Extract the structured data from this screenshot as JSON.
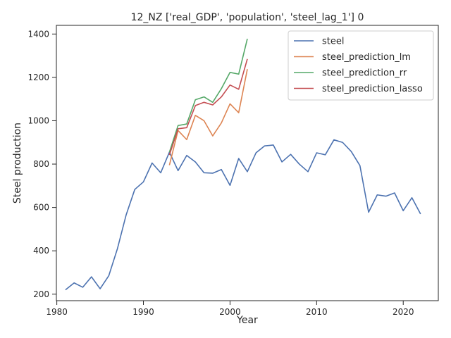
{
  "chart_data": {
    "type": "line",
    "title": "12_NZ ['real_GDP', 'population', 'steel_lag_1'] 0",
    "xlabel": "Year",
    "ylabel": "Steel production",
    "xlim": [
      1979.95,
      2024.05
    ],
    "ylim": [
      170,
      1440
    ],
    "xticks": [
      1980,
      1990,
      2000,
      2010,
      2020
    ],
    "yticks": [
      200,
      400,
      600,
      800,
      1000,
      1200,
      1400
    ],
    "grid": false,
    "legend_position": "top-right",
    "series": [
      {
        "name": "steel",
        "color": "#4c72b0",
        "x": [
          1981,
          1982,
          1983,
          1984,
          1985,
          1986,
          1987,
          1988,
          1989,
          1990,
          1991,
          1992,
          1993,
          1994,
          1995,
          1996,
          1997,
          1998,
          1999,
          2000,
          2001,
          2002,
          2003,
          2004,
          2005,
          2006,
          2007,
          2008,
          2009,
          2010,
          2011,
          2012,
          2013,
          2014,
          2015,
          2016,
          2017,
          2018,
          2019,
          2020,
          2021,
          2022
        ],
        "y": [
          220,
          252,
          232,
          280,
          225,
          285,
          410,
          565,
          683,
          718,
          805,
          760,
          855,
          770,
          840,
          810,
          760,
          758,
          775,
          702,
          826,
          765,
          852,
          884,
          888,
          810,
          845,
          800,
          765,
          852,
          843,
          912,
          900,
          858,
          793,
          578,
          658,
          652,
          667,
          585,
          645,
          570
        ]
      },
      {
        "name": "steel_prediction_lm",
        "color": "#dd8452",
        "x": [
          1993,
          1994,
          1995,
          1996,
          1997,
          1998,
          1999,
          2000,
          2001,
          2002
        ],
        "y": [
          795,
          955,
          913,
          1025,
          1000,
          930,
          990,
          1078,
          1037,
          1238
        ]
      },
      {
        "name": "steel_prediction_rr",
        "color": "#55a868",
        "x": [
          1993,
          1994,
          1995,
          1996,
          1997,
          1998,
          1999,
          2000,
          2001,
          2002
        ],
        "y": [
          855,
          978,
          985,
          1097,
          1110,
          1085,
          1148,
          1223,
          1215,
          1378
        ]
      },
      {
        "name": "steel_prediction_lasso",
        "color": "#c44e52",
        "x": [
          1993,
          1994,
          1995,
          1996,
          1997,
          1998,
          1999,
          2000,
          2001,
          2002
        ],
        "y": [
          842,
          963,
          968,
          1070,
          1085,
          1073,
          1110,
          1165,
          1145,
          1285
        ]
      }
    ]
  }
}
